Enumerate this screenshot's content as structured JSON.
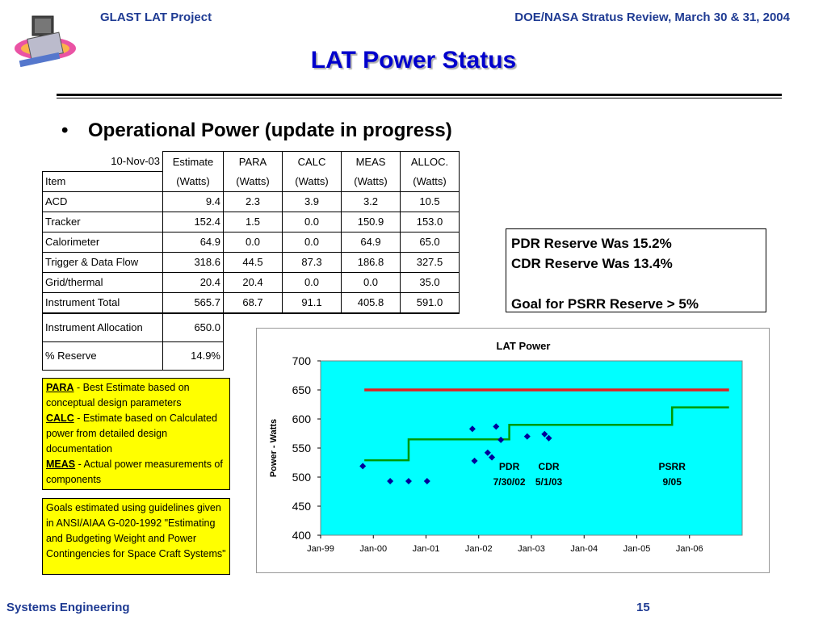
{
  "header": {
    "left": "GLAST LAT Project",
    "right": "DOE/NASA Stratus Review, March 30 & 31, 2004",
    "logo_icon": "glast-satellite-logo"
  },
  "title": "LAT Power Status",
  "bullet": {
    "marker": "•",
    "text": "Operational Power (update in progress)"
  },
  "table": {
    "date_label": "10-Nov-03",
    "head1": [
      "Estimate",
      "PARA",
      "CALC",
      "MEAS",
      "ALLOC."
    ],
    "item_label": "Item",
    "head2": [
      "(Watts)",
      "(Watts)",
      "(Watts)",
      "(Watts)",
      "(Watts)"
    ],
    "rows": [
      {
        "item": "ACD",
        "values": [
          "9.4",
          "2.3",
          "3.9",
          "3.2",
          "10.5"
        ]
      },
      {
        "item": "Tracker",
        "values": [
          "152.4",
          "1.5",
          "0.0",
          "150.9",
          "153.0"
        ]
      },
      {
        "item": "Calorimeter",
        "values": [
          "64.9",
          "0.0",
          "0.0",
          "64.9",
          "65.0"
        ]
      },
      {
        "item": "Trigger & Data Flow",
        "values": [
          "318.6",
          "44.5",
          "87.3",
          "186.8",
          "327.5"
        ]
      },
      {
        "item": "Grid/thermal",
        "values": [
          "20.4",
          "20.4",
          "0.0",
          "0.0",
          "35.0"
        ]
      },
      {
        "item": "Instrument Total",
        "values": [
          "565.7",
          "68.7",
          "91.1",
          "405.8",
          "591.0"
        ]
      }
    ],
    "allocation": {
      "item": "Instrument Allocation",
      "value": "650.0"
    },
    "reserve": {
      "item": "% Reserve",
      "value": "14.9%"
    }
  },
  "reserve_box": {
    "line1": "PDR  Reserve Was 15.2%",
    "line2": "CDR  Reserve Was 13.4%",
    "line3": "Goal for PSRR  Reserve >  5%"
  },
  "legend": {
    "para_term": "PARA",
    "para_text": " - Best Estimate based on conceptual design parameters",
    "calc_term": "CALC",
    "calc_text": " - Estimate based on Calculated power from detailed design documentation",
    "meas_term": "MEAS",
    "meas_text": " - Actual power measurements of components"
  },
  "goals_text": "Goals estimated using guidelines given in ANSI/AIAA G-020-1992 \"Estimating and Budgeting Weight and Power Contingencies for Space Craft Systems\"",
  "footer": {
    "left": "Systems Engineering",
    "page": "15"
  },
  "colors": {
    "header_text": "#1f3b93",
    "title_text": "#0000cc",
    "plot_bg": "#00ffff",
    "limit_line": "#e02020",
    "allocation_line": "#009900",
    "markers": "#000099",
    "callout_bg": "#ffff00"
  },
  "chart_data": {
    "type": "line",
    "title": "LAT Power",
    "xlabel": "",
    "ylabel": "Power - Watts",
    "ylim": [
      400,
      700
    ],
    "yticks": [
      "700",
      "650",
      "600",
      "550",
      "500",
      "450",
      "400"
    ],
    "xlim": [
      1999.0,
      2007.0
    ],
    "xticks": [
      {
        "x": 1999,
        "label": "Jan-99"
      },
      {
        "x": 2000,
        "label": "Jan-00"
      },
      {
        "x": 2001,
        "label": "Jan-01"
      },
      {
        "x": 2002,
        "label": "Jan-02"
      },
      {
        "x": 2003,
        "label": "Jan-03"
      },
      {
        "x": 2004,
        "label": "Jan-04"
      },
      {
        "x": 2005,
        "label": "Jan-05"
      },
      {
        "x": 2006,
        "label": "Jan-06"
      }
    ],
    "grid": false,
    "series": [
      {
        "kind": "line",
        "values_xy": [
          [
            1999.83,
            650
          ],
          [
            2006.75,
            650
          ]
        ]
      },
      {
        "kind": "step",
        "values_xy": [
          [
            1999.83,
            529
          ],
          [
            2000.67,
            529
          ],
          [
            2000.67,
            565
          ],
          [
            2002.58,
            565
          ],
          [
            2002.58,
            590
          ],
          [
            2005.67,
            590
          ],
          [
            2005.67,
            620
          ],
          [
            2006.75,
            620
          ]
        ]
      },
      {
        "kind": "scatter",
        "values_xy": [
          [
            1999.8,
            519
          ],
          [
            2000.32,
            493
          ],
          [
            2000.67,
            493
          ],
          [
            2001.02,
            493
          ],
          [
            2001.88,
            583
          ],
          [
            2001.92,
            528
          ],
          [
            2002.17,
            542
          ],
          [
            2002.25,
            534
          ],
          [
            2002.33,
            587
          ],
          [
            2002.42,
            564
          ],
          [
            2002.92,
            570
          ],
          [
            2003.25,
            574
          ],
          [
            2003.33,
            567
          ]
        ]
      }
    ],
    "annotations": [
      {
        "x": 2002.58,
        "line1": "PDR",
        "line2": "7/30/02"
      },
      {
        "x": 2003.33,
        "line1": "CDR",
        "line2": "5/1/03"
      },
      {
        "x": 2005.67,
        "line1": "PSRR",
        "line2": "9/05"
      }
    ]
  }
}
